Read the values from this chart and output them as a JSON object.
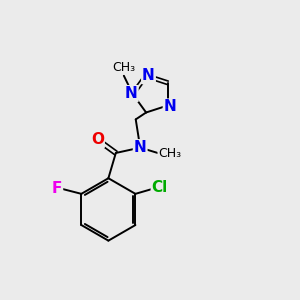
{
  "background_color": "#ebebeb",
  "bond_color": "#000000",
  "atom_colors": {
    "N": "#0000ee",
    "O": "#ee0000",
    "F": "#ee00ee",
    "Cl": "#00aa00",
    "C": "#000000"
  },
  "lw": 1.4,
  "lw_double": 1.2,
  "fontsize": 11,
  "small_fontsize": 9
}
